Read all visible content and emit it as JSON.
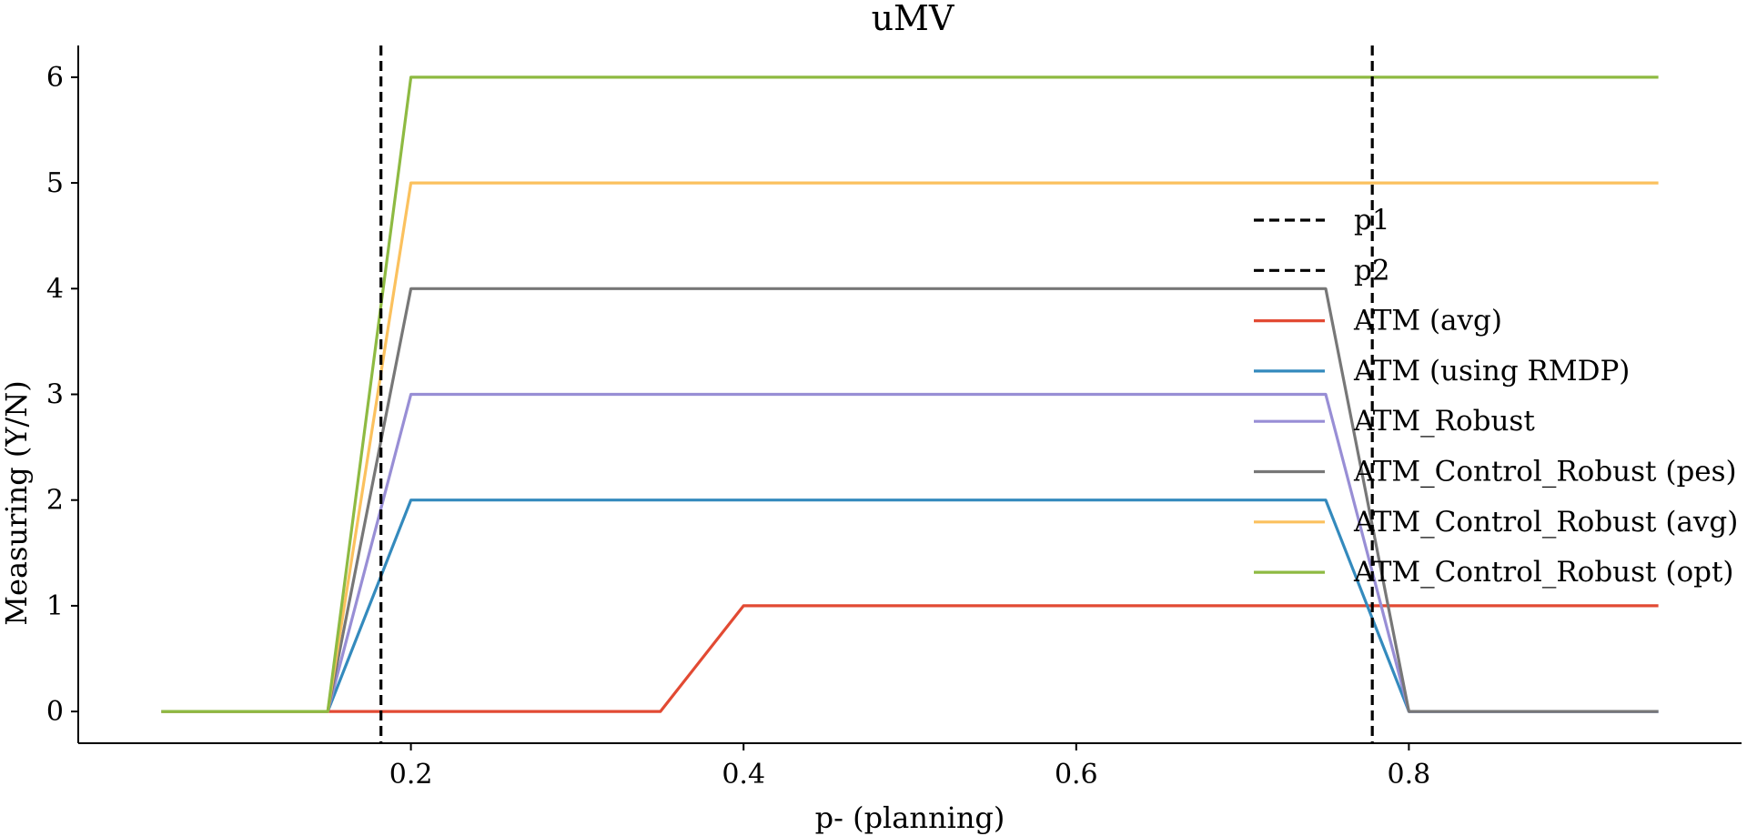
{
  "chart_data": {
    "type": "line",
    "title": "uMV",
    "xlabel": "p- (planning)",
    "ylabel": "Measuring (Y/N)",
    "xlim": [
      0.0,
      1.0
    ],
    "ylim": [
      -0.3,
      6.3
    ],
    "xticks": [
      0.2,
      0.4,
      0.6,
      0.8
    ],
    "xtick_labels": [
      "0.2",
      "0.4",
      "0.6",
      "0.8"
    ],
    "yticks": [
      0,
      1,
      2,
      3,
      4,
      5,
      6
    ],
    "ytick_labels": [
      "0",
      "1",
      "2",
      "3",
      "4",
      "5",
      "6"
    ],
    "grid": false,
    "legend_position": "center-right",
    "vlines": [
      {
        "name": "p1",
        "x": 0.182,
        "color": "#000000",
        "style": "dashed"
      },
      {
        "name": "p2",
        "x": 0.778,
        "color": "#000000",
        "style": "dashed"
      }
    ],
    "series": [
      {
        "name": "ATM (avg)",
        "color": "#E24A33",
        "x": [
          0.05,
          0.15,
          0.35,
          0.4,
          0.95
        ],
        "y": [
          0,
          0,
          0,
          1,
          1
        ]
      },
      {
        "name": "ATM (using RMDP)",
        "color": "#348ABD",
        "x": [
          0.05,
          0.15,
          0.2,
          0.75,
          0.8,
          0.95
        ],
        "y": [
          0,
          0,
          2,
          2,
          0,
          0
        ]
      },
      {
        "name": "ATM_Robust",
        "color": "#988ED5",
        "x": [
          0.05,
          0.15,
          0.2,
          0.75,
          0.8,
          0.95
        ],
        "y": [
          0,
          0,
          3,
          3,
          0,
          0
        ]
      },
      {
        "name": "ATM_Control_Robust (pes)",
        "color": "#777777",
        "x": [
          0.05,
          0.15,
          0.2,
          0.75,
          0.8,
          0.95
        ],
        "y": [
          0,
          0,
          4,
          4,
          0,
          0
        ]
      },
      {
        "name": "ATM_Control_Robust (avg)",
        "color": "#FBC15E",
        "x": [
          0.05,
          0.15,
          0.2,
          0.95
        ],
        "y": [
          0,
          0,
          5,
          5
        ]
      },
      {
        "name": "ATM_Control_Robust (opt)",
        "color": "#8EBA42",
        "x": [
          0.05,
          0.15,
          0.2,
          0.95
        ],
        "y": [
          0,
          0,
          6,
          6
        ]
      }
    ],
    "legend_entries": [
      {
        "label": "p1",
        "color": "#000000",
        "style": "dashed"
      },
      {
        "label": "p2",
        "color": "#000000",
        "style": "dashed"
      },
      {
        "label": "ATM (avg)",
        "color": "#E24A33",
        "style": "solid"
      },
      {
        "label": "ATM (using RMDP)",
        "color": "#348ABD",
        "style": "solid"
      },
      {
        "label": "ATM_Robust",
        "color": "#988ED5",
        "style": "solid"
      },
      {
        "label": "ATM_Control_Robust (pes)",
        "color": "#777777",
        "style": "solid"
      },
      {
        "label": "ATM_Control_Robust (avg)",
        "color": "#FBC15E",
        "style": "solid"
      },
      {
        "label": "ATM_Control_Robust (opt)",
        "color": "#8EBA42",
        "style": "solid"
      }
    ]
  }
}
